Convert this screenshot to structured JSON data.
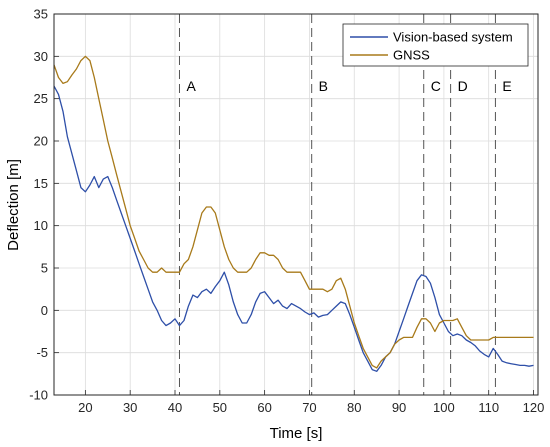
{
  "chart_data": {
    "type": "line",
    "xlabel": "Time [s]",
    "ylabel": "Deflection [m]",
    "xlim": [
      13,
      121
    ],
    "ylim": [
      -10,
      35
    ],
    "xticks": [
      20,
      30,
      40,
      50,
      60,
      70,
      80,
      90,
      100,
      110,
      120
    ],
    "yticks": [
      -10,
      -5,
      0,
      5,
      10,
      15,
      20,
      25,
      30,
      35
    ],
    "grid": true,
    "legend_position": "top-right",
    "series": [
      {
        "name": "Vision-based system",
        "color": "#2e4fa8",
        "x": [
          13,
          14,
          15,
          16,
          17,
          18,
          19,
          20,
          21,
          22,
          23,
          24,
          25,
          26,
          27,
          28,
          29,
          30,
          31,
          32,
          33,
          34,
          35,
          36,
          37,
          38,
          39,
          40,
          41,
          42,
          43,
          44,
          45,
          46,
          47,
          48,
          49,
          50,
          51,
          52,
          53,
          54,
          55,
          56,
          57,
          58,
          59,
          60,
          61,
          62,
          63,
          64,
          65,
          66,
          67,
          68,
          69,
          70,
          71,
          72,
          73,
          74,
          75,
          76,
          77,
          78,
          79,
          80,
          81,
          82,
          83,
          84,
          85,
          86,
          87,
          88,
          89,
          90,
          91,
          92,
          93,
          94,
          95,
          96,
          97,
          98,
          99,
          100,
          101,
          102,
          103,
          104,
          105,
          106,
          107,
          108,
          109,
          110,
          111,
          112,
          113,
          114,
          115,
          116,
          117,
          118,
          119,
          120
        ],
        "y": [
          26.5,
          25.5,
          23.5,
          20.5,
          18.5,
          16.5,
          14.5,
          14.0,
          14.8,
          15.8,
          14.5,
          15.5,
          15.8,
          14.5,
          13.0,
          11.5,
          10.0,
          8.5,
          7.0,
          5.5,
          4.0,
          2.5,
          1.0,
          0.0,
          -1.2,
          -1.8,
          -1.5,
          -1.0,
          -1.8,
          -1.2,
          0.5,
          1.8,
          1.5,
          2.2,
          2.5,
          2.0,
          2.8,
          3.5,
          4.5,
          3.0,
          1.0,
          -0.5,
          -1.5,
          -1.5,
          -0.5,
          1.0,
          2.0,
          2.2,
          1.5,
          0.8,
          1.2,
          0.5,
          0.2,
          0.8,
          0.5,
          0.2,
          -0.2,
          -0.5,
          -0.3,
          -0.8,
          -0.6,
          -0.5,
          0.0,
          0.5,
          1.0,
          0.8,
          -0.5,
          -2.0,
          -3.5,
          -5.0,
          -6.0,
          -7.0,
          -7.2,
          -6.5,
          -5.5,
          -5.0,
          -4.0,
          -2.5,
          -1.0,
          0.5,
          2.0,
          3.5,
          4.2,
          4.0,
          3.2,
          1.5,
          -0.5,
          -1.5,
          -2.5,
          -3.0,
          -2.8,
          -3.0,
          -3.5,
          -3.8,
          -4.2,
          -4.8,
          -5.2,
          -5.5,
          -4.5,
          -5.2,
          -6.0,
          -6.2,
          -6.3,
          -6.4,
          -6.5,
          -6.5,
          -6.6,
          -6.5
        ]
      },
      {
        "name": "GNSS",
        "color": "#a87a1a",
        "x": [
          13,
          14,
          15,
          16,
          17,
          18,
          19,
          20,
          21,
          22,
          23,
          24,
          25,
          26,
          27,
          28,
          29,
          30,
          31,
          32,
          33,
          34,
          35,
          36,
          37,
          38,
          39,
          40,
          41,
          42,
          43,
          44,
          45,
          46,
          47,
          48,
          49,
          50,
          51,
          52,
          53,
          54,
          55,
          56,
          57,
          58,
          59,
          60,
          61,
          62,
          63,
          64,
          65,
          66,
          67,
          68,
          69,
          70,
          71,
          72,
          73,
          74,
          75,
          76,
          77,
          78,
          79,
          80,
          81,
          82,
          83,
          84,
          85,
          86,
          87,
          88,
          89,
          90,
          91,
          92,
          93,
          94,
          95,
          96,
          97,
          98,
          99,
          100,
          101,
          102,
          103,
          104,
          105,
          106,
          107,
          108,
          109,
          110,
          111,
          112,
          113,
          114,
          115,
          116,
          117,
          118,
          119,
          120
        ],
        "y": [
          29.0,
          27.5,
          26.8,
          27.0,
          27.8,
          28.5,
          29.5,
          30.0,
          29.5,
          27.5,
          25.0,
          22.5,
          20.0,
          18.0,
          16.0,
          14.0,
          12.0,
          10.0,
          8.5,
          7.0,
          6.0,
          5.0,
          4.5,
          4.5,
          5.0,
          4.5,
          4.5,
          4.5,
          4.5,
          5.5,
          6.0,
          7.5,
          9.5,
          11.5,
          12.2,
          12.2,
          11.5,
          9.5,
          7.5,
          6.0,
          5.0,
          4.5,
          4.5,
          4.5,
          5.0,
          6.0,
          6.8,
          6.8,
          6.5,
          6.5,
          6.0,
          5.0,
          4.5,
          4.5,
          4.5,
          4.5,
          3.5,
          2.5,
          2.5,
          2.5,
          2.5,
          2.2,
          2.5,
          3.5,
          3.8,
          2.5,
          0.5,
          -1.5,
          -3.0,
          -4.5,
          -5.5,
          -6.5,
          -6.8,
          -6.0,
          -5.5,
          -5.0,
          -4.0,
          -3.5,
          -3.2,
          -3.2,
          -3.2,
          -2.0,
          -1.0,
          -1.0,
          -1.5,
          -2.5,
          -1.5,
          -1.2,
          -1.2,
          -1.2,
          -1.0,
          -2.0,
          -3.0,
          -3.5,
          -3.5,
          -3.5,
          -3.5,
          -3.5,
          -3.2,
          -3.2,
          -3.2,
          -3.2,
          -3.2,
          -3.2,
          -3.2,
          -3.2,
          -3.2,
          -3.2
        ]
      }
    ],
    "annotations": [
      {
        "label": "A",
        "x": 41
      },
      {
        "label": "B",
        "x": 70.5
      },
      {
        "label": "C",
        "x": 95.5
      },
      {
        "label": "D",
        "x": 101.5
      },
      {
        "label": "E",
        "x": 111.5
      }
    ],
    "annotation_label_y": 26.5
  }
}
